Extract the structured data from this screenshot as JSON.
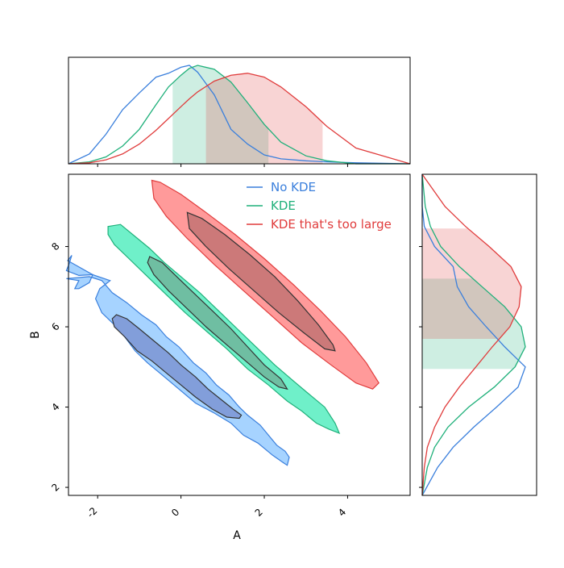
{
  "chart_data": {
    "type": "corner-kde-contour",
    "xlabel": "A",
    "ylabel": "B",
    "xlim": [
      -2.7,
      5.5
    ],
    "ylim": [
      1.8,
      9.8
    ],
    "xticks": [
      -2,
      0,
      2,
      4
    ],
    "yticks": [
      2,
      4,
      6,
      8
    ],
    "tick_labels": {
      "x": [
        "-2",
        "0",
        "2",
        "4"
      ],
      "y": [
        "2",
        "4",
        "6",
        "8"
      ]
    },
    "legend": {
      "placement": "top-center",
      "entries": [
        "No KDE",
        "KDE",
        "KDE that's too large"
      ]
    },
    "series": [
      {
        "name": "No KDE",
        "color": "#3a7fdc",
        "outer_fill": "#a6d3ff",
        "inner_fill": "#7f9bd8",
        "outer_contour": [
          [
            -2.72,
            7.65
          ],
          [
            -2.62,
            7.78
          ],
          [
            -2.68,
            7.58
          ],
          [
            -2.75,
            7.4
          ],
          [
            -2.45,
            7.28
          ],
          [
            -2.12,
            7.3
          ],
          [
            -2.2,
            7.1
          ],
          [
            -2.45,
            6.95
          ],
          [
            -2.55,
            6.95
          ],
          [
            -2.45,
            7.15
          ],
          [
            -2.75,
            7.2
          ],
          [
            -2.2,
            7.25
          ],
          [
            -1.9,
            7.15
          ],
          [
            -1.65,
            6.85
          ],
          [
            -1.3,
            6.6
          ],
          [
            -0.95,
            6.3
          ],
          [
            -0.6,
            6.05
          ],
          [
            -0.35,
            5.75
          ],
          [
            -0.05,
            5.5
          ],
          [
            0.3,
            5.1
          ],
          [
            0.6,
            4.85
          ],
          [
            0.85,
            4.55
          ],
          [
            1.15,
            4.3
          ],
          [
            1.4,
            4.0
          ],
          [
            1.6,
            3.8
          ],
          [
            1.9,
            3.55
          ],
          [
            2.3,
            3.05
          ],
          [
            2.5,
            2.9
          ],
          [
            2.6,
            2.75
          ],
          [
            2.55,
            2.55
          ],
          [
            2.45,
            2.62
          ],
          [
            2.2,
            2.8
          ],
          [
            1.85,
            3.1
          ],
          [
            1.5,
            3.3
          ],
          [
            1.2,
            3.6
          ],
          [
            0.8,
            3.85
          ],
          [
            0.35,
            4.1
          ],
          [
            -0.05,
            4.45
          ],
          [
            -0.45,
            4.8
          ],
          [
            -0.8,
            5.1
          ],
          [
            -1.1,
            5.4
          ],
          [
            -1.35,
            5.75
          ],
          [
            -1.6,
            6.05
          ],
          [
            -1.9,
            6.35
          ],
          [
            -2.05,
            6.7
          ],
          [
            -1.95,
            6.95
          ],
          [
            -1.7,
            7.15
          ],
          [
            -2.12,
            7.3
          ]
        ],
        "inner_contour": [
          [
            -1.55,
            6.3
          ],
          [
            -1.3,
            6.2
          ],
          [
            -1.0,
            5.95
          ],
          [
            -0.65,
            5.65
          ],
          [
            -0.3,
            5.35
          ],
          [
            0.0,
            5.05
          ],
          [
            0.35,
            4.75
          ],
          [
            0.65,
            4.45
          ],
          [
            0.95,
            4.2
          ],
          [
            1.25,
            3.95
          ],
          [
            1.45,
            3.8
          ],
          [
            1.4,
            3.72
          ],
          [
            1.1,
            3.75
          ],
          [
            0.75,
            3.95
          ],
          [
            0.35,
            4.25
          ],
          [
            0.0,
            4.55
          ],
          [
            -0.35,
            4.85
          ],
          [
            -0.7,
            5.15
          ],
          [
            -1.05,
            5.4
          ],
          [
            -1.35,
            5.75
          ],
          [
            -1.6,
            6.0
          ],
          [
            -1.65,
            6.2
          ]
        ]
      },
      {
        "name": "KDE",
        "color": "#1fb07a",
        "outer_fill": "#6ff0c9",
        "inner_fill": "#6fbba0",
        "outer_contour": [
          [
            -1.75,
            8.5
          ],
          [
            -1.45,
            8.55
          ],
          [
            -1.1,
            8.25
          ],
          [
            -0.75,
            7.95
          ],
          [
            -0.4,
            7.6
          ],
          [
            0.0,
            7.25
          ],
          [
            0.45,
            6.85
          ],
          [
            0.9,
            6.4
          ],
          [
            1.35,
            5.95
          ],
          [
            1.8,
            5.5
          ],
          [
            2.25,
            5.05
          ],
          [
            2.7,
            4.65
          ],
          [
            3.1,
            4.3
          ],
          [
            3.45,
            4.0
          ],
          [
            3.7,
            3.6
          ],
          [
            3.8,
            3.35
          ],
          [
            3.55,
            3.45
          ],
          [
            3.25,
            3.6
          ],
          [
            2.9,
            3.9
          ],
          [
            2.55,
            4.15
          ],
          [
            2.1,
            4.55
          ],
          [
            1.6,
            4.95
          ],
          [
            1.1,
            5.45
          ],
          [
            0.6,
            5.9
          ],
          [
            0.1,
            6.35
          ],
          [
            -0.35,
            6.8
          ],
          [
            -0.8,
            7.25
          ],
          [
            -1.25,
            7.7
          ],
          [
            -1.6,
            8.05
          ],
          [
            -1.75,
            8.3
          ]
        ],
        "inner_contour": [
          [
            -0.75,
            7.75
          ],
          [
            -0.45,
            7.6
          ],
          [
            -0.1,
            7.25
          ],
          [
            0.3,
            6.85
          ],
          [
            0.75,
            6.4
          ],
          [
            1.2,
            5.95
          ],
          [
            1.6,
            5.5
          ],
          [
            2.0,
            5.05
          ],
          [
            2.4,
            4.7
          ],
          [
            2.55,
            4.45
          ],
          [
            2.35,
            4.5
          ],
          [
            2.0,
            4.75
          ],
          [
            1.55,
            5.15
          ],
          [
            1.1,
            5.55
          ],
          [
            0.6,
            6.0
          ],
          [
            0.15,
            6.45
          ],
          [
            -0.3,
            6.9
          ],
          [
            -0.65,
            7.3
          ],
          [
            -0.8,
            7.6
          ]
        ]
      },
      {
        "name": "KDE that's too large",
        "color": "#e03c3c",
        "outer_fill": "#ff9a9a",
        "inner_fill": "#c97777",
        "outer_contour": [
          [
            -0.7,
            9.65
          ],
          [
            -0.5,
            9.6
          ],
          [
            0.0,
            9.3
          ],
          [
            0.6,
            8.85
          ],
          [
            1.3,
            8.3
          ],
          [
            2.0,
            7.7
          ],
          [
            2.7,
            7.05
          ],
          [
            3.35,
            6.4
          ],
          [
            3.95,
            5.75
          ],
          [
            4.45,
            5.1
          ],
          [
            4.75,
            4.6
          ],
          [
            4.6,
            4.45
          ],
          [
            4.2,
            4.6
          ],
          [
            3.6,
            5.05
          ],
          [
            2.9,
            5.6
          ],
          [
            2.2,
            6.25
          ],
          [
            1.5,
            6.9
          ],
          [
            0.8,
            7.55
          ],
          [
            0.15,
            8.2
          ],
          [
            -0.35,
            8.75
          ],
          [
            -0.65,
            9.2
          ]
        ],
        "inner_contour": [
          [
            0.15,
            8.85
          ],
          [
            0.5,
            8.7
          ],
          [
            1.05,
            8.3
          ],
          [
            1.65,
            7.8
          ],
          [
            2.25,
            7.25
          ],
          [
            2.8,
            6.65
          ],
          [
            3.3,
            6.05
          ],
          [
            3.65,
            5.55
          ],
          [
            3.7,
            5.4
          ],
          [
            3.45,
            5.45
          ],
          [
            2.95,
            5.85
          ],
          [
            2.35,
            6.35
          ],
          [
            1.75,
            6.9
          ],
          [
            1.15,
            7.45
          ],
          [
            0.6,
            8.0
          ],
          [
            0.2,
            8.45
          ]
        ]
      }
    ],
    "marginal_a": {
      "x": [
        -2.7,
        -2.2,
        -1.8,
        -1.4,
        -1.0,
        -0.6,
        -0.3,
        0.0,
        0.2,
        0.4,
        0.8,
        1.2,
        1.6,
        2.0,
        2.4,
        3.0,
        3.5,
        4.2,
        5.5
      ],
      "No KDE": [
        0.0,
        0.1,
        0.3,
        0.55,
        0.72,
        0.88,
        0.92,
        0.98,
        1.0,
        0.93,
        0.7,
        0.35,
        0.2,
        0.09,
        0.05,
        0.03,
        0.02,
        0.01,
        0.0
      ],
      "KDE": [
        0.0,
        0.02,
        0.07,
        0.18,
        0.35,
        0.6,
        0.78,
        0.9,
        0.97,
        1.0,
        0.96,
        0.83,
        0.62,
        0.4,
        0.22,
        0.08,
        0.03,
        0.0,
        0.0
      ],
      "KDE that's too large": [
        0.0,
        0.01,
        0.04,
        0.1,
        0.2,
        0.34,
        0.46,
        0.58,
        0.66,
        0.73,
        0.84,
        0.9,
        0.92,
        0.88,
        0.78,
        0.58,
        0.38,
        0.16,
        0.0
      ],
      "band_KDE": [
        -0.2,
        2.1
      ],
      "band_large": [
        0.6,
        3.4
      ]
    },
    "marginal_b": {
      "y": [
        1.8,
        2.5,
        3.0,
        3.5,
        4.0,
        4.5,
        5.0,
        5.5,
        6.0,
        6.5,
        7.0,
        7.5,
        8.0,
        8.5,
        9.0,
        9.8
      ],
      "No KDE": [
        0.0,
        0.15,
        0.3,
        0.5,
        0.72,
        0.93,
        1.0,
        0.8,
        0.62,
        0.45,
        0.34,
        0.3,
        0.12,
        0.02,
        0.0,
        0.0
      ],
      "KDE": [
        0.0,
        0.05,
        0.12,
        0.25,
        0.45,
        0.7,
        0.9,
        1.0,
        0.96,
        0.8,
        0.58,
        0.36,
        0.18,
        0.08,
        0.03,
        0.0
      ],
      "KDE that's too large": [
        0.0,
        0.02,
        0.05,
        0.12,
        0.22,
        0.36,
        0.52,
        0.68,
        0.85,
        0.94,
        0.96,
        0.86,
        0.65,
        0.42,
        0.22,
        0.0
      ],
      "band_KDE": [
        4.95,
        7.2
      ],
      "band_large": [
        5.7,
        8.45
      ]
    }
  }
}
